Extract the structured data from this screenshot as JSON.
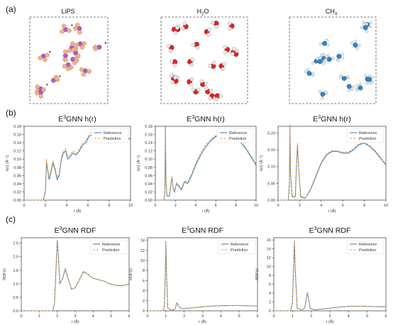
{
  "panel_labels": [
    "(a)",
    "(b)",
    "(c)"
  ],
  "molecules": [
    {
      "title_main": "LiPS",
      "title_sub": ""
    },
    {
      "title_main": "H",
      "title_sub": "2",
      "title_tail": "O"
    },
    {
      "title_main": "CH",
      "title_sub": "4",
      "title_tail": ""
    }
  ],
  "colors": {
    "reference": "#2a7ab8",
    "prediction": "#f0973a",
    "Li": "#a35fc9",
    "P": "#a35fc9",
    "S": "#f2b08f",
    "O": "#e02020",
    "H": "#e8e8e8",
    "C": "#2f84c7"
  },
  "legend": {
    "reference": "Reference",
    "prediction": "Prediction"
  },
  "chart_data": [
    {
      "type": "line",
      "title_main": "E",
      "title_sup": "3",
      "title_tail": "GNN h(r)",
      "xlabel": "r (Å)",
      "ylabel": "h(r) (Å⁻¹)",
      "xlim": [
        0,
        10
      ],
      "ylim": [
        0,
        0.18
      ],
      "xticks": [
        0,
        2,
        4,
        6,
        8,
        10
      ],
      "yticks": [
        0.0,
        0.02,
        0.04,
        0.06,
        0.08,
        0.1,
        0.12,
        0.14,
        0.16,
        0.18
      ],
      "ytick_labels": [
        "0.00",
        "0.02",
        "0.04",
        "0.06",
        "0.08",
        "0.10",
        "0.12",
        "0.14",
        "0.16",
        "0.18"
      ],
      "legend_loc": "top-right",
      "series": [
        {
          "name": "Reference",
          "x": [
            0,
            1.8,
            2.0,
            2.1,
            2.2,
            2.35,
            2.5,
            2.7,
            2.9,
            3.1,
            3.3,
            3.5,
            3.7,
            3.9,
            4.1,
            4.3,
            4.6,
            4.9,
            5.2,
            5.5,
            5.8,
            6.1,
            6.4,
            6.7,
            7.0,
            7.5,
            8.0,
            8.5,
            9.0,
            9.5,
            10.0
          ],
          "y": [
            0,
            0,
            0.02,
            0.09,
            0.075,
            0.05,
            0.065,
            0.09,
            0.075,
            0.05,
            0.06,
            0.1,
            0.115,
            0.12,
            0.1,
            0.105,
            0.115,
            0.11,
            0.12,
            0.135,
            0.14,
            0.155,
            0.16,
            0.165,
            0.15,
            0.148,
            0.15,
            0.148,
            0.15,
            0.148,
            0.15
          ]
        },
        {
          "name": "Prediction",
          "x": [
            0,
            1.8,
            2.0,
            2.1,
            2.2,
            2.35,
            2.5,
            2.7,
            2.9,
            3.1,
            3.3,
            3.5,
            3.7,
            3.9,
            4.1,
            4.3,
            4.6,
            4.9,
            5.2,
            5.5,
            5.8,
            6.1,
            6.4,
            6.7,
            7.0,
            7.5,
            8.0,
            8.5,
            9.0,
            9.5,
            10.0
          ],
          "y": [
            0,
            0,
            0.025,
            0.1,
            0.08,
            0.055,
            0.07,
            0.095,
            0.08,
            0.055,
            0.065,
            0.105,
            0.12,
            0.125,
            0.105,
            0.11,
            0.12,
            0.115,
            0.125,
            0.14,
            0.145,
            0.16,
            0.165,
            0.17,
            0.155,
            0.15,
            0.152,
            0.15,
            0.152,
            0.15,
            0.152
          ]
        }
      ]
    },
    {
      "type": "line",
      "title_main": "E",
      "title_sup": "3",
      "title_tail": "GNN h(r)",
      "xlabel": "r (Å)",
      "ylabel": "h(r) (Å⁻¹)",
      "xlim": [
        0,
        10
      ],
      "ylim": [
        0,
        0.18
      ],
      "xticks": [
        0,
        2,
        4,
        6,
        8,
        10
      ],
      "yticks": [
        0.0,
        0.02,
        0.04,
        0.06,
        0.08,
        0.1,
        0.12,
        0.14,
        0.16,
        0.18
      ],
      "ytick_labels": [
        "0.00",
        "0.02",
        "0.04",
        "0.06",
        "0.08",
        "0.10",
        "0.12",
        "0.14",
        "0.16",
        "0.18"
      ],
      "legend_loc": "top-right",
      "series": [
        {
          "name": "Reference",
          "x": [
            0,
            0.85,
            0.95,
            1.0,
            1.05,
            1.15,
            1.4,
            1.55,
            1.65,
            1.75,
            1.9,
            2.1,
            2.3,
            2.6,
            2.9,
            3.2,
            3.6,
            4.0,
            4.5,
            5.0,
            5.5,
            6.0,
            6.5,
            7.0,
            7.5,
            8.0,
            8.5,
            9.0,
            9.5,
            10.0
          ],
          "y": [
            0,
            0,
            0.02,
            0.18,
            0.05,
            0.01,
            0.01,
            0.04,
            0.055,
            0.03,
            0.02,
            0.04,
            0.035,
            0.025,
            0.045,
            0.04,
            0.06,
            0.085,
            0.11,
            0.13,
            0.145,
            0.155,
            0.162,
            0.165,
            0.16,
            0.155,
            0.14,
            0.125,
            0.105,
            0.085
          ]
        },
        {
          "name": "Prediction",
          "x": [
            0,
            0.85,
            0.95,
            1.0,
            1.05,
            1.15,
            1.4,
            1.55,
            1.65,
            1.75,
            1.9,
            2.1,
            2.3,
            2.6,
            2.9,
            3.2,
            3.6,
            4.0,
            4.5,
            5.0,
            5.5,
            6.0,
            6.5,
            7.0,
            7.5,
            8.0,
            8.5,
            9.0,
            9.5,
            10.0
          ],
          "y": [
            0,
            0,
            0.02,
            0.175,
            0.05,
            0.012,
            0.012,
            0.042,
            0.058,
            0.032,
            0.022,
            0.042,
            0.038,
            0.028,
            0.048,
            0.043,
            0.063,
            0.09,
            0.115,
            0.135,
            0.148,
            0.158,
            0.165,
            0.168,
            0.163,
            0.157,
            0.142,
            0.127,
            0.108,
            0.088
          ]
        }
      ]
    },
    {
      "type": "line",
      "title_main": "E",
      "title_sup": "3",
      "title_tail": "GNN h(r)",
      "xlabel": "r (Å)",
      "ylabel": "h(r) (Å⁻¹)",
      "xlim": [
        0,
        10
      ],
      "ylim": [
        0,
        0.22
      ],
      "xticks": [
        0,
        2,
        4,
        6,
        8,
        10
      ],
      "yticks": [
        0.0,
        0.05,
        0.1,
        0.15,
        0.2
      ],
      "ytick_labels": [
        "0.00",
        "0.05",
        "0.10",
        "0.15",
        "0.20"
      ],
      "legend_loc": "top-right",
      "series": [
        {
          "name": "Reference",
          "x": [
            0,
            0.95,
            1.05,
            1.1,
            1.15,
            1.3,
            1.6,
            1.7,
            1.8,
            1.9,
            2.1,
            2.5,
            3.0,
            3.5,
            4.0,
            4.5,
            5.0,
            5.5,
            6.0,
            6.5,
            7.0,
            7.5,
            8.0,
            8.5,
            9.0,
            9.5,
            10.0
          ],
          "y": [
            0,
            0,
            0.05,
            0.22,
            0.08,
            0.01,
            0.01,
            0.1,
            0.165,
            0.1,
            0.01,
            0.005,
            0.03,
            0.07,
            0.11,
            0.135,
            0.145,
            0.145,
            0.14,
            0.14,
            0.15,
            0.165,
            0.17,
            0.16,
            0.145,
            0.125,
            0.105
          ]
        },
        {
          "name": "Prediction",
          "x": [
            0,
            0.95,
            1.05,
            1.1,
            1.15,
            1.3,
            1.6,
            1.7,
            1.8,
            1.9,
            2.1,
            2.5,
            3.0,
            3.5,
            4.0,
            4.5,
            5.0,
            5.5,
            6.0,
            6.5,
            7.0,
            7.5,
            8.0,
            8.5,
            9.0,
            9.5,
            10.0
          ],
          "y": [
            0,
            0,
            0.05,
            0.225,
            0.08,
            0.012,
            0.012,
            0.1,
            0.17,
            0.1,
            0.012,
            0.006,
            0.032,
            0.073,
            0.113,
            0.138,
            0.148,
            0.148,
            0.143,
            0.143,
            0.153,
            0.168,
            0.173,
            0.163,
            0.148,
            0.128,
            0.107
          ]
        }
      ]
    },
    {
      "type": "line",
      "title_main": "E",
      "title_sup": "3",
      "title_tail": "GNN RDF",
      "xlabel": "r (Å)",
      "ylabel": "RDF(r)",
      "xlim": [
        0,
        6
      ],
      "ylim": [
        0,
        2.7
      ],
      "xticks": [
        0,
        1,
        2,
        3,
        4,
        5,
        6
      ],
      "yticks": [
        0.0,
        0.5,
        1.0,
        1.5,
        2.0,
        2.5
      ],
      "ytick_labels": [
        "0.0",
        "0.5",
        "1.0",
        "1.5",
        "2.0",
        "2.5"
      ],
      "legend_loc": "top-right",
      "series": [
        {
          "name": "Reference",
          "x": [
            0,
            1.75,
            1.85,
            1.95,
            2.0,
            2.05,
            2.15,
            2.3,
            2.45,
            2.6,
            2.8,
            3.0,
            3.2,
            3.45,
            3.7,
            4.0,
            4.3,
            4.6,
            4.9,
            5.2,
            5.5,
            5.8,
            6.0
          ],
          "y": [
            0,
            0,
            0.3,
            1.8,
            2.6,
            2.2,
            1.0,
            1.2,
            1.55,
            1.2,
            0.8,
            0.85,
            1.1,
            1.45,
            1.35,
            1.2,
            1.15,
            1.1,
            1.0,
            0.95,
            0.92,
            0.95,
            1.0
          ]
        },
        {
          "name": "Prediction",
          "x": [
            0,
            1.75,
            1.85,
            1.95,
            2.0,
            2.05,
            2.15,
            2.3,
            2.45,
            2.6,
            2.8,
            3.0,
            3.2,
            3.45,
            3.7,
            4.0,
            4.3,
            4.6,
            4.9,
            5.2,
            5.5,
            5.8,
            6.0
          ],
          "y": [
            0,
            0,
            0.3,
            1.8,
            2.55,
            2.15,
            1.0,
            1.2,
            1.5,
            1.2,
            0.8,
            0.86,
            1.1,
            1.43,
            1.35,
            1.2,
            1.15,
            1.1,
            1.0,
            0.95,
            0.92,
            0.95,
            1.0
          ]
        }
      ]
    },
    {
      "type": "line",
      "title_main": "E",
      "title_sup": "3",
      "title_tail": "GNN RDF",
      "xlabel": "r (Å)",
      "ylabel": "RDF(r)",
      "xlim": [
        0,
        6
      ],
      "ylim": [
        0,
        14.5
      ],
      "xticks": [
        0,
        1,
        2,
        3,
        4,
        5,
        6
      ],
      "yticks": [
        0,
        2,
        4,
        6,
        8,
        10,
        12,
        14
      ],
      "ytick_labels": [
        "0",
        "2",
        "4",
        "6",
        "8",
        "10",
        "12",
        "14"
      ],
      "legend_loc": "top-right",
      "series": [
        {
          "name": "Reference",
          "x": [
            0,
            0.85,
            0.92,
            0.97,
            1.0,
            1.03,
            1.1,
            1.3,
            1.5,
            1.6,
            1.7,
            1.85,
            2.1,
            2.5,
            3.0,
            3.5,
            4.0,
            4.5,
            5.0,
            5.5,
            6.0
          ],
          "y": [
            0,
            0,
            1.0,
            8.0,
            13.8,
            8.0,
            0.6,
            0.1,
            0.3,
            1.6,
            0.9,
            0.4,
            0.5,
            0.6,
            0.8,
            0.95,
            1.0,
            1.05,
            1.05,
            1.0,
            0.95
          ]
        },
        {
          "name": "Prediction",
          "x": [
            0,
            0.85,
            0.92,
            0.97,
            1.0,
            1.03,
            1.1,
            1.3,
            1.5,
            1.6,
            1.7,
            1.85,
            2.1,
            2.5,
            3.0,
            3.5,
            4.0,
            4.5,
            5.0,
            5.5,
            6.0
          ],
          "y": [
            0,
            0,
            1.0,
            7.8,
            13.5,
            7.8,
            0.6,
            0.1,
            0.3,
            1.55,
            0.9,
            0.4,
            0.5,
            0.6,
            0.8,
            0.95,
            1.0,
            1.05,
            1.05,
            1.0,
            0.95
          ]
        }
      ]
    },
    {
      "type": "line",
      "title_main": "E",
      "title_sup": "3",
      "title_tail": "GNN RDF",
      "xlabel": "r (Å)",
      "ylabel": "RDF(r)",
      "xlim": [
        0,
        6
      ],
      "ylim": [
        0,
        16.5
      ],
      "xticks": [
        0,
        1,
        2,
        3,
        4,
        5,
        6
      ],
      "yticks": [
        0,
        2,
        4,
        6,
        8,
        10,
        12,
        14,
        16
      ],
      "ytick_labels": [
        "0",
        "2",
        "4",
        "6",
        "8",
        "10",
        "12",
        "14",
        "16"
      ],
      "legend_loc": "top-right",
      "series": [
        {
          "name": "Reference",
          "x": [
            0,
            0.9,
            1.0,
            1.05,
            1.1,
            1.15,
            1.25,
            1.5,
            1.65,
            1.75,
            1.8,
            1.85,
            1.95,
            2.2,
            2.6,
            3.0,
            3.5,
            4.0,
            4.5,
            5.0,
            5.5,
            6.0
          ],
          "y": [
            0,
            0,
            2.0,
            9.0,
            15.8,
            9.0,
            0.6,
            0.2,
            0.6,
            3.0,
            4.2,
            3.0,
            0.5,
            0.2,
            0.4,
            0.6,
            0.85,
            1.0,
            1.05,
            1.0,
            0.95,
            0.9
          ]
        },
        {
          "name": "Prediction",
          "x": [
            0,
            0.9,
            1.0,
            1.05,
            1.1,
            1.15,
            1.25,
            1.5,
            1.65,
            1.75,
            1.8,
            1.85,
            1.95,
            2.2,
            2.6,
            3.0,
            3.5,
            4.0,
            4.5,
            5.0,
            5.5,
            6.0
          ],
          "y": [
            0,
            0,
            2.0,
            8.8,
            15.5,
            8.8,
            0.6,
            0.2,
            0.6,
            2.9,
            4.1,
            2.9,
            0.5,
            0.2,
            0.4,
            0.6,
            0.85,
            1.0,
            1.05,
            1.0,
            0.95,
            0.9
          ]
        }
      ]
    }
  ]
}
